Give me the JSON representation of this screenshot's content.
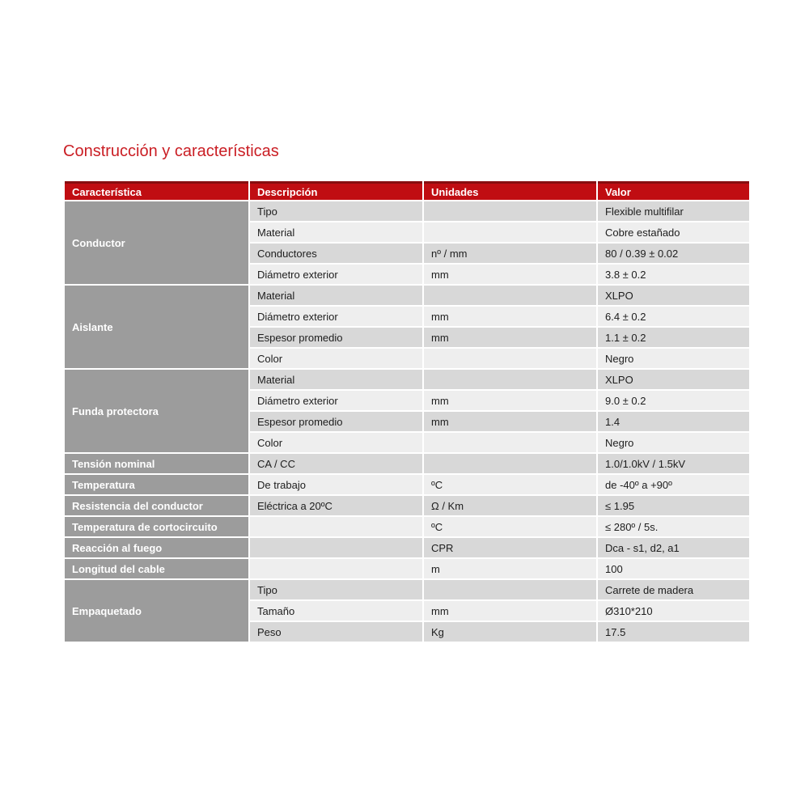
{
  "page": {
    "title": "Construcción y características",
    "colors": {
      "title_red": "#ca1e24",
      "header_red": "#c00d12",
      "header_red_dark": "#880e10",
      "group_gray": "#9c9c9c",
      "row_dark": "#d8d8d8",
      "row_light": "#eeeeee",
      "text_dark": "#1d1d1d"
    }
  },
  "table": {
    "headers": [
      "Característica",
      "Descripción",
      "Unidades",
      "Valor"
    ],
    "groups": [
      {
        "name": "Conductor",
        "rows": [
          [
            "Tipo",
            "",
            "Flexible multifilar"
          ],
          [
            "Material",
            "",
            "Cobre estañado"
          ],
          [
            "Conductores",
            "nº / mm",
            "80 / 0.39 ± 0.02"
          ],
          [
            "Diámetro exterior",
            "mm",
            "3.8 ± 0.2"
          ]
        ]
      },
      {
        "name": "Aislante",
        "rows": [
          [
            "Material",
            "",
            "XLPO"
          ],
          [
            "Diámetro exterior",
            "mm",
            "6.4 ± 0.2"
          ],
          [
            "Espesor promedio",
            "mm",
            "1.1 ± 0.2"
          ],
          [
            "Color",
            "",
            "Negro"
          ]
        ]
      },
      {
        "name": "Funda protectora",
        "rows": [
          [
            "Material",
            "",
            "XLPO"
          ],
          [
            "Diámetro exterior",
            "mm",
            "9.0 ± 0.2"
          ],
          [
            "Espesor promedio",
            "mm",
            "1.4"
          ],
          [
            "Color",
            "",
            "Negro"
          ]
        ]
      },
      {
        "name": "Tensión nominal",
        "rows": [
          [
            "CA / CC",
            "",
            "1.0/1.0kV / 1.5kV"
          ]
        ]
      },
      {
        "name": "Temperatura",
        "rows": [
          [
            "De trabajo",
            "ºC",
            "de -40º a +90º"
          ]
        ]
      },
      {
        "name": "Resistencia del conductor",
        "rows": [
          [
            "Eléctrica a 20ºC",
            "Ω / Km",
            "≤ 1.95"
          ]
        ]
      },
      {
        "name": "Temperatura de cortocircuito",
        "rows": [
          [
            "",
            "ºC",
            "≤ 280º / 5s."
          ]
        ]
      },
      {
        "name": "Reacción al fuego",
        "rows": [
          [
            "",
            "CPR",
            "Dca - s1, d2, a1"
          ]
        ]
      },
      {
        "name": "Longitud del cable",
        "rows": [
          [
            "",
            "m",
            "100"
          ]
        ]
      },
      {
        "name": "Empaquetado",
        "rows": [
          [
            "Tipo",
            "",
            "Carrete de madera"
          ],
          [
            "Tamaño",
            "mm",
            "Ø310*210"
          ],
          [
            "Peso",
            "Kg",
            "17.5"
          ]
        ]
      }
    ]
  }
}
